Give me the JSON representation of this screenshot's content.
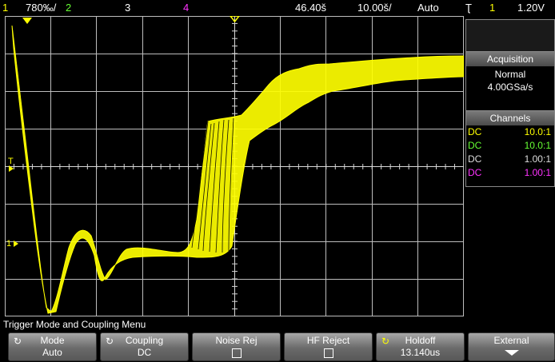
{
  "topbar": {
    "ch1_num": "1",
    "ch1_scale": "780‰/",
    "ch2_num": "2",
    "ch3_num": "3",
    "ch4_num": "4",
    "time_delay": "46.40š",
    "time_scale": "10.00š/",
    "trigger_mode": "Auto",
    "trig_icon": "Ʈ",
    "trig_ch": "1",
    "trig_level": "1.20V"
  },
  "panel": {
    "acq_title": "Acquisition",
    "acq_mode": "Normal",
    "acq_rate": "4.00GSa/s",
    "ch_title": "Channels",
    "channels": [
      {
        "coupling": "DC",
        "probe": "10.0:1",
        "color": "#ffff00"
      },
      {
        "coupling": "DC",
        "probe": "10.0:1",
        "color": "#66ff33"
      },
      {
        "coupling": "DC",
        "probe": "1.00:1",
        "color": "#dddddd"
      },
      {
        "coupling": "DC",
        "probe": "1.00:1",
        "color": "#ff33ff"
      }
    ]
  },
  "markers": {
    "trig_marker": "T",
    "gnd_marker": "1"
  },
  "menu": {
    "title": "Trigger Mode and Coupling Menu",
    "keys": [
      {
        "label": "Mode",
        "value": "Auto"
      },
      {
        "label": "Coupling",
        "value": "DC"
      },
      {
        "label": "Noise Rej",
        "value": ""
      },
      {
        "label": "HF Reject",
        "value": ""
      },
      {
        "label": "Holdoff",
        "value": "13.140us"
      },
      {
        "label": "External",
        "value": ""
      }
    ]
  },
  "colors": {
    "ch1": "#ffff00",
    "ch2": "#66ff33",
    "ch3": "#dddddd",
    "ch4": "#ff33ff",
    "grid": "#bdbdbd"
  }
}
